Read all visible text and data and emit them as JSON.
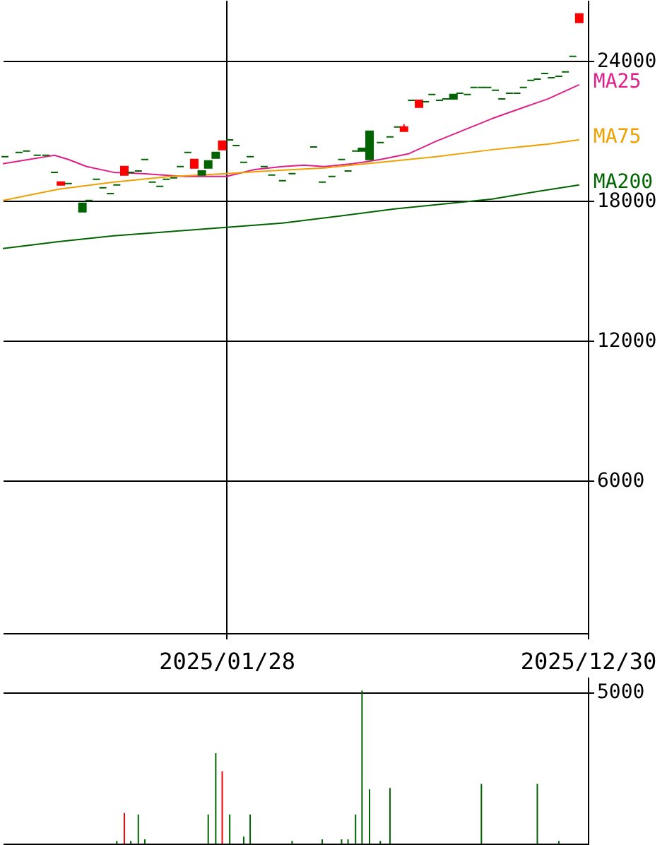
{
  "chart_data": [
    {
      "type": "candlestick",
      "x": [
        "2024-07-06",
        "2024-07-19",
        "2024-07-26",
        "2024-08-05",
        "2024-08-13",
        "2024-08-21",
        "2024-08-27",
        "2024-09-03",
        "2024-09-16",
        "2024-09-22",
        "2024-09-29",
        "2024-10-05",
        "2024-10-12",
        "2024-10-18",
        "2024-10-25",
        "2024-10-31",
        "2024-11-07",
        "2024-11-13",
        "2024-11-20",
        "2024-11-27",
        "2024-12-03",
        "2024-12-10",
        "2024-12-16",
        "2024-12-23",
        "2024-12-29",
        "2025-01-05",
        "2025-01-11",
        "2025-01-18",
        "2025-01-24",
        "2025-01-31",
        "2025-02-06",
        "2025-02-13",
        "2025-02-19",
        "2025-03-04",
        "2025-03-11",
        "2025-03-21",
        "2025-03-30",
        "2025-04-19",
        "2025-04-27",
        "2025-05-06",
        "2025-05-15",
        "2025-05-21",
        "2025-05-28",
        "2025-06-03",
        "2025-06-10",
        "2025-06-20",
        "2025-06-29",
        "2025-07-06",
        "2025-07-12",
        "2025-07-19",
        "2025-07-26",
        "2025-08-01",
        "2025-08-07",
        "2025-08-14",
        "2025-08-20",
        "2025-08-27",
        "2025-09-02",
        "2025-09-09",
        "2025-09-15",
        "2025-09-22",
        "2025-09-28",
        "2025-10-05",
        "2025-10-11",
        "2025-10-18",
        "2025-10-25",
        "2025-10-31",
        "2025-11-07",
        "2025-11-13",
        "2025-11-20",
        "2025-11-26",
        "2025-12-03",
        "2025-12-09",
        "2025-12-16",
        "2025-12-22"
      ],
      "ohlc": [
        [
          19880,
          19880,
          19880,
          19880
        ],
        [
          20060,
          20060,
          20060,
          20060
        ],
        [
          20120,
          20120,
          20120,
          20120
        ],
        [
          19940,
          19940,
          19940,
          19940
        ],
        [
          19940,
          19940,
          19940,
          19940
        ],
        [
          19210,
          19210,
          19210,
          19210
        ],
        [
          18670,
          18790,
          18670,
          18790
        ],
        [
          18730,
          18730,
          18730,
          18730
        ],
        [
          17880,
          17880,
          17520,
          17520
        ],
        [
          18000,
          18000,
          18000,
          18000
        ],
        [
          18910,
          18910,
          18910,
          18910
        ],
        [
          18545,
          18545,
          18545,
          18545
        ],
        [
          18300,
          18300,
          18300,
          18300
        ],
        [
          18670,
          18670,
          18670,
          18670
        ],
        [
          19090,
          19455,
          19090,
          19455
        ],
        [
          19210,
          19210,
          19210,
          19210
        ],
        [
          19270,
          19270,
          19270,
          19270
        ],
        [
          19760,
          19760,
          19760,
          19760
        ],
        [
          18790,
          18790,
          18790,
          18790
        ],
        [
          18610,
          18610,
          18610,
          18610
        ],
        [
          18910,
          18910,
          18910,
          18910
        ],
        [
          18970,
          18970,
          18970,
          18970
        ],
        [
          19455,
          19455,
          19455,
          19455
        ],
        [
          20060,
          20060,
          20060,
          20060
        ],
        [
          19395,
          19760,
          19395,
          19760
        ],
        [
          19270,
          19270,
          19090,
          19090
        ],
        [
          19700,
          19700,
          19395,
          19395
        ],
        [
          20060,
          20060,
          19820,
          19820
        ],
        [
          20180,
          20545,
          20180,
          20545
        ],
        [
          20600,
          20600,
          20600,
          20600
        ],
        [
          20360,
          20360,
          20360,
          20360
        ],
        [
          19640,
          19640,
          19640,
          19640
        ],
        [
          19880,
          19880,
          19880,
          19880
        ],
        [
          19455,
          19455,
          19455,
          19455
        ],
        [
          19090,
          19090,
          19090,
          19090
        ],
        [
          18850,
          18850,
          18850,
          18850
        ],
        [
          19150,
          19150,
          19150,
          19150
        ],
        [
          20300,
          20300,
          20300,
          20300
        ],
        [
          18790,
          18790,
          18790,
          18790
        ],
        [
          19030,
          19030,
          19030,
          19030
        ],
        [
          19760,
          19760,
          19760,
          19760
        ],
        [
          19270,
          19270,
          19270,
          19270
        ],
        [
          20120,
          20120,
          20120,
          20120
        ],
        [
          20240,
          20240,
          20120,
          20120
        ],
        [
          20970,
          20970,
          19760,
          19760
        ],
        [
          20485,
          20485,
          20485,
          20485
        ],
        [
          20730,
          20730,
          20730,
          20730
        ],
        [
          21150,
          21150,
          21150,
          21150
        ],
        [
          20970,
          21270,
          20970,
          21150
        ],
        [
          22300,
          22300,
          22300,
          22300
        ],
        [
          22000,
          22300,
          22000,
          22300
        ],
        [
          22240,
          22240,
          22240,
          22240
        ],
        [
          22545,
          22545,
          22545,
          22545
        ],
        [
          22300,
          22300,
          22300,
          22300
        ],
        [
          22360,
          22360,
          22360,
          22360
        ],
        [
          22545,
          22545,
          22360,
          22360
        ],
        [
          22600,
          22600,
          22600,
          22600
        ],
        [
          22545,
          22545,
          22545,
          22545
        ],
        [
          22850,
          22850,
          22850,
          22850
        ],
        [
          22850,
          22850,
          22850,
          22850
        ],
        [
          22850,
          22850,
          22850,
          22850
        ],
        [
          22730,
          22730,
          22730,
          22730
        ],
        [
          22360,
          22360,
          22360,
          22360
        ],
        [
          22600,
          22600,
          22600,
          22600
        ],
        [
          22600,
          22600,
          22600,
          22600
        ],
        [
          22850,
          22850,
          22850,
          22850
        ],
        [
          23150,
          23150,
          23150,
          23150
        ],
        [
          23210,
          23210,
          23210,
          23210
        ],
        [
          23450,
          23450,
          23450,
          23450
        ],
        [
          23270,
          23270,
          23270,
          23270
        ],
        [
          23330,
          23330,
          23330,
          23330
        ],
        [
          23515,
          23515,
          23515,
          23515
        ],
        [
          24180,
          24180,
          24180,
          24180
        ],
        [
          25640,
          26000,
          25640,
          26000
        ]
      ],
      "series": [
        {
          "name": "MA25",
          "color": "#e0208a",
          "type": "line",
          "x": [
            "2024-07-04",
            "2024-08-21",
            "2024-09-03",
            "2024-09-20",
            "2024-10-15",
            "2024-11-11",
            "2024-12-20",
            "2025-01-28",
            "2025-02-23",
            "2025-03-21",
            "2025-04-10",
            "2025-04-29",
            "2025-05-25",
            "2025-06-20",
            "2025-07-16",
            "2025-08-11",
            "2025-09-06",
            "2025-10-02",
            "2025-10-28",
            "2025-11-23",
            "2025-12-22"
          ],
          "values": [
            19575,
            19940,
            19760,
            19455,
            19210,
            19150,
            19030,
            19030,
            19330,
            19455,
            19515,
            19455,
            19575,
            19760,
            20000,
            20545,
            21030,
            21515,
            21940,
            22360,
            22970
          ]
        },
        {
          "name": "MA75",
          "color": "#f0a000",
          "type": "line",
          "x": [
            "2024-07-04",
            "2024-08-25",
            "2024-10-15",
            "2024-12-07",
            "2025-01-28",
            "2025-03-07",
            "2025-04-29",
            "2025-06-20",
            "2025-08-11",
            "2025-10-02",
            "2025-11-23",
            "2025-12-22"
          ],
          "values": [
            18000,
            18485,
            18790,
            19030,
            19150,
            19270,
            19395,
            19640,
            19880,
            20180,
            20420,
            20610
          ]
        },
        {
          "name": "MA200",
          "color": "#006400",
          "type": "line",
          "x": [
            "2024-07-04",
            "2024-08-25",
            "2024-10-15",
            "2024-12-07",
            "2025-01-28",
            "2025-03-21",
            "2025-05-12",
            "2025-07-03",
            "2025-08-24",
            "2025-10-02",
            "2025-11-10",
            "2025-12-22"
          ],
          "values": [
            15940,
            16240,
            16485,
            16670,
            16850,
            17030,
            17330,
            17635,
            17880,
            18060,
            18365,
            18670
          ]
        }
      ],
      "xlim": [
        "2024-07-04",
        "2025-12-30"
      ],
      "xticks": [
        {
          "value": "2025-01-28",
          "label": "2025/01/28"
        },
        {
          "value": "2025-12-30",
          "label": "2025/12/30"
        }
      ],
      "ylim": [
        -550,
        26600
      ],
      "yticks": [
        6000,
        12000,
        18000,
        24000
      ],
      "grid": true
    },
    {
      "type": "bar",
      "x": [
        "2024-10-18",
        "2024-10-25",
        "2024-10-31",
        "2024-11-07",
        "2024-11-13",
        "2025-01-11",
        "2025-01-18",
        "2025-01-24",
        "2025-01-31",
        "2025-02-13",
        "2025-02-19",
        "2025-03-30",
        "2025-04-27",
        "2025-05-15",
        "2025-05-21",
        "2025-05-28",
        "2025-06-03",
        "2025-06-10",
        "2025-06-20",
        "2025-06-29",
        "2025-09-22",
        "2025-11-13",
        "2025-12-03"
      ],
      "values": [
        90,
        1010,
        90,
        960,
        140,
        960,
        2980,
        2385,
        960,
        230,
        960,
        90,
        140,
        140,
        140,
        960,
        5050,
        1790,
        90,
        1835,
        1970,
        1970,
        90
      ],
      "colors": [
        "#006400",
        "#ff0000",
        "#006400",
        "#006400",
        "#006400",
        "#006400",
        "#006400",
        "#ff0000",
        "#006400",
        "#006400",
        "#006400",
        "#006400",
        "#006400",
        "#006400",
        "#006400",
        "#006400",
        "#006400",
        "#006400",
        "#006400",
        "#006400",
        "#006400",
        "#006400",
        "#006400"
      ],
      "xlim": [
        "2024-07-04",
        "2025-12-30"
      ],
      "xticks": [
        {
          "value": "2025-01-28",
          "label": null
        },
        {
          "value": "2025-12-30",
          "label": null
        }
      ],
      "ylim": [
        0,
        5500
      ],
      "yticks": [
        5000
      ],
      "grid": "y",
      "tick_labels": "y"
    }
  ]
}
